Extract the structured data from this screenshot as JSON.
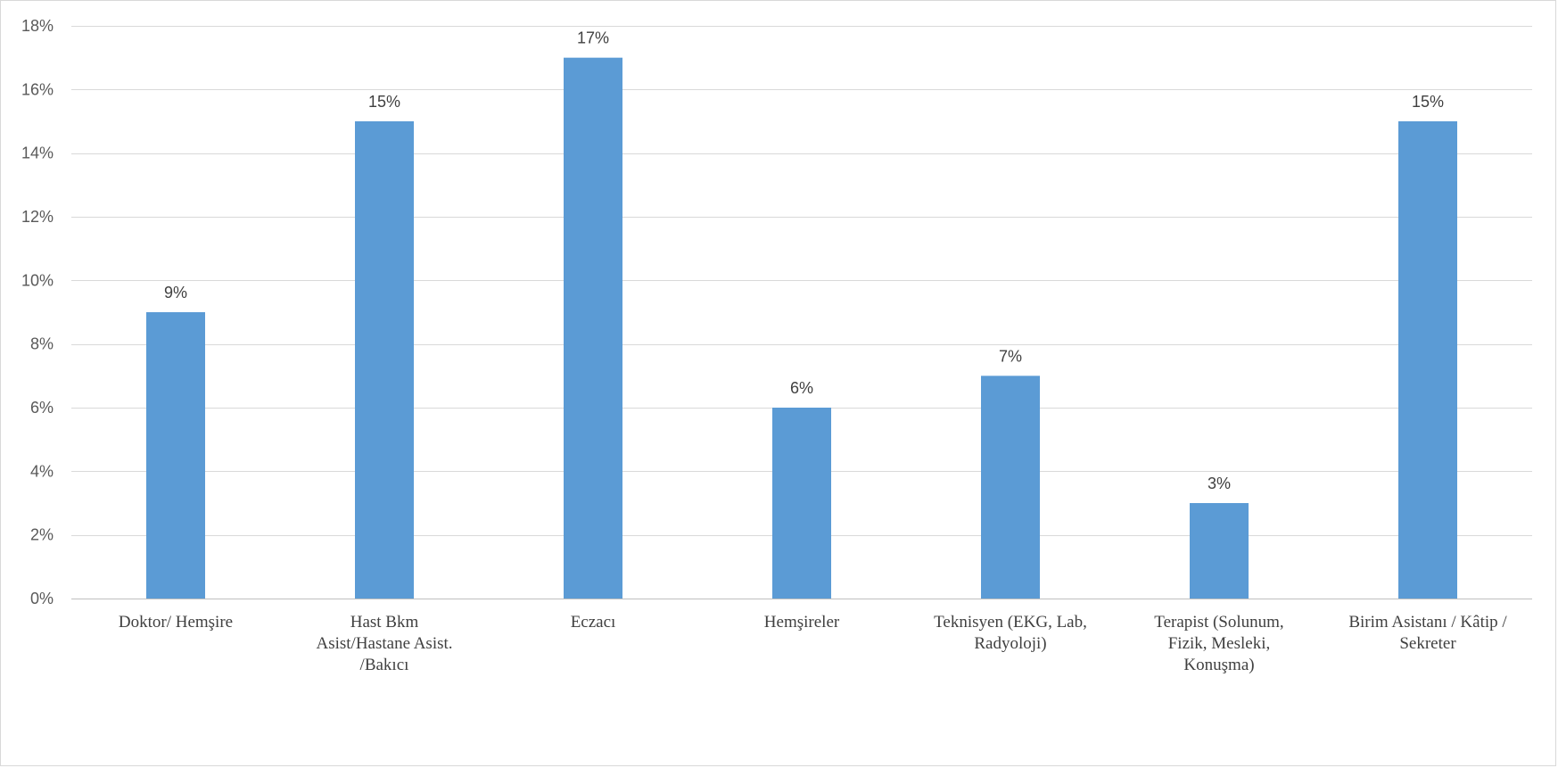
{
  "chart_data": {
    "type": "bar",
    "categories": [
      [
        "Doktor/ Hemşire"
      ],
      [
        "Hast Bkm",
        "Asist/Hastane Asist.",
        "/Bakıcı"
      ],
      [
        "Eczacı"
      ],
      [
        "Hemşireler"
      ],
      [
        "Teknisyen (EKG, Lab,",
        "Radyoloji)"
      ],
      [
        "Terapist (Solunum,",
        "Fizik, Mesleki,",
        "Konuşma)"
      ],
      [
        "Birim Asistanı / Kâtip /",
        "Sekreter"
      ]
    ],
    "values": [
      9,
      15,
      17,
      6,
      7,
      3,
      15
    ],
    "data_labels": [
      "9%",
      "15%",
      "17%",
      "6%",
      "7%",
      "3%",
      "15%"
    ],
    "y_ticks": [
      0,
      2,
      4,
      6,
      8,
      10,
      12,
      14,
      16,
      18
    ],
    "y_tick_labels": [
      "0%",
      "2%",
      "4%",
      "6%",
      "8%",
      "10%",
      "12%",
      "14%",
      "16%",
      "18%"
    ],
    "ylim": [
      0,
      18
    ],
    "grid": true,
    "bar_color": "#5b9bd5",
    "title": "",
    "xlabel": "",
    "ylabel": ""
  }
}
